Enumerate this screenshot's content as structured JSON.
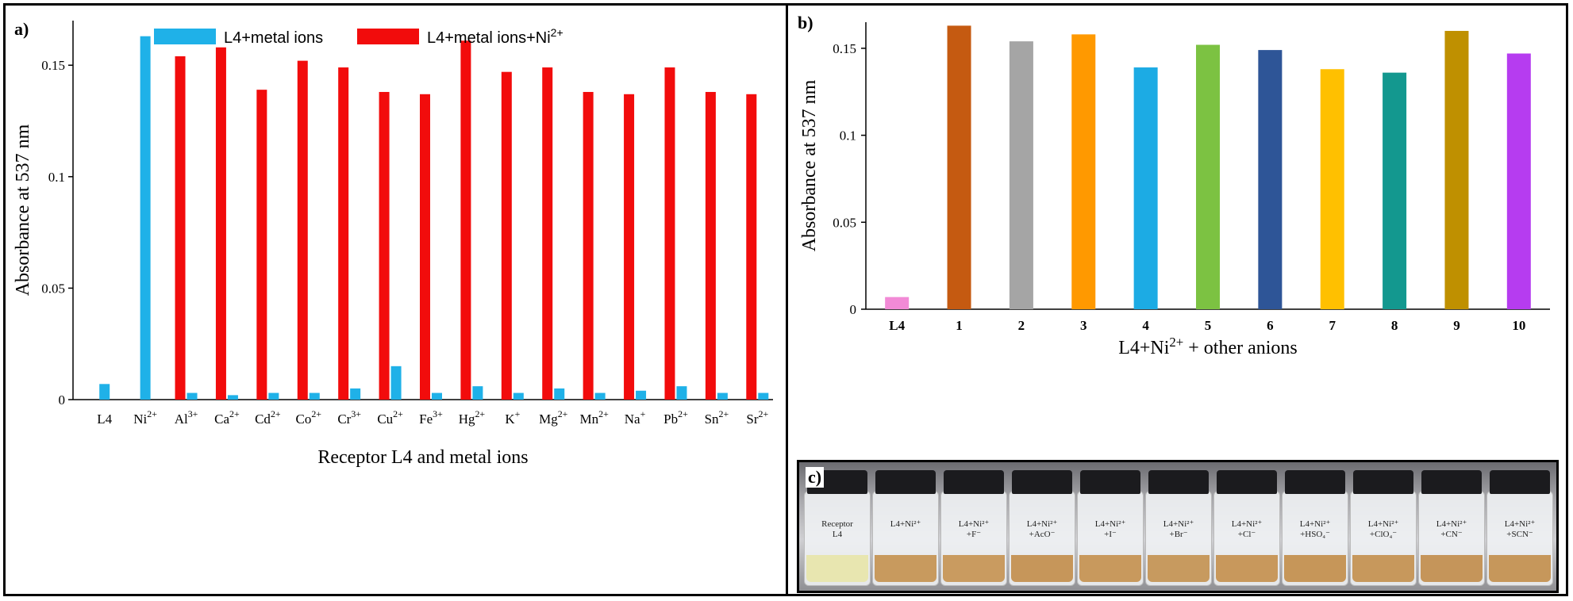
{
  "chart_data": [
    {
      "type": "bar",
      "panel_label": "a)",
      "title": "",
      "xlabel": "Receptor L4 and metal ions",
      "ylabel": "Absorbance at 537 nm",
      "ylim": [
        0,
        0.17
      ],
      "yticks": [
        "0",
        "0.05",
        "0.1",
        "0.15"
      ],
      "ytick_values": [
        0,
        0.05,
        0.1,
        0.15
      ],
      "categories": [
        "L4",
        "Ni2+",
        "Al3+",
        "Ca2+",
        "Cd2+",
        "Co2+",
        "Cr3+",
        "Cu2+",
        "Fe3+",
        "Hg2+",
        "K+",
        "Mg2+",
        "Mn2+",
        "Na+",
        "Pb2+",
        "Sn2+",
        "Sr2+"
      ],
      "category_labels": [
        {
          "base": "L4",
          "sup": ""
        },
        {
          "base": "Ni",
          "sup": "2+"
        },
        {
          "base": "Al",
          "sup": "3+"
        },
        {
          "base": "Ca",
          "sup": "2+"
        },
        {
          "base": "Cd",
          "sup": "2+"
        },
        {
          "base": "Co",
          "sup": "2+"
        },
        {
          "base": "Cr",
          "sup": "3+"
        },
        {
          "base": "Cu",
          "sup": "2+"
        },
        {
          "base": "Fe",
          "sup": "3+"
        },
        {
          "base": "Hg",
          "sup": "2+"
        },
        {
          "base": "K",
          "sup": "+"
        },
        {
          "base": "Mg",
          "sup": "2+"
        },
        {
          "base": "Mn",
          "sup": "2+"
        },
        {
          "base": "Na",
          "sup": "+"
        },
        {
          "base": "Pb",
          "sup": "2+"
        },
        {
          "base": "Sn",
          "sup": "2+"
        },
        {
          "base": "Sr",
          "sup": "2+"
        }
      ],
      "series": [
        {
          "name": "L4+metal ions",
          "legend_base": "L4+metal ions",
          "legend_sup": "",
          "color": "#1fb1e8",
          "values": [
            0.007,
            0.163,
            0.003,
            0.002,
            0.003,
            0.003,
            0.005,
            0.015,
            0.003,
            0.006,
            0.003,
            0.005,
            0.003,
            0.004,
            0.006,
            0.003,
            0.003
          ]
        },
        {
          "name": "L4+metal ions+Ni2+",
          "legend_base": "L4+metal ions+Ni",
          "legend_sup": "2+",
          "color": "#f20c0c",
          "values": [
            null,
            null,
            0.154,
            0.158,
            0.139,
            0.152,
            0.149,
            0.138,
            0.137,
            0.161,
            0.147,
            0.149,
            0.138,
            0.137,
            0.149,
            0.138,
            0.137
          ]
        }
      ]
    },
    {
      "type": "bar",
      "panel_label": "b)",
      "title": "",
      "xlabel_base": "L4+Ni",
      "xlabel_sup": "2+",
      "xlabel_rest": " + other anions",
      "ylabel": "Absorbance at 537 nm",
      "ylim": [
        0,
        0.165
      ],
      "yticks": [
        "0",
        "0.05",
        "0.1",
        "0.15"
      ],
      "ytick_values": [
        0,
        0.05,
        0.1,
        0.15
      ],
      "categories": [
        "L4",
        "1",
        "2",
        "3",
        "4",
        "5",
        "6",
        "7",
        "8",
        "9",
        "10"
      ],
      "values": [
        0.007,
        0.163,
        0.154,
        0.158,
        0.139,
        0.152,
        0.149,
        0.138,
        0.136,
        0.16,
        0.147
      ],
      "colors": [
        "#f28ad6",
        "#c55a11",
        "#a5a5a5",
        "#ff9900",
        "#1cabe4",
        "#7cc242",
        "#2e5597",
        "#ffc000",
        "#13988f",
        "#bf9000",
        "#b63cf0"
      ]
    }
  ],
  "photo": {
    "panel_label": "c)",
    "vials": [
      {
        "lines": [
          "Receptor",
          "L4"
        ],
        "liquid": "#e8e6b0"
      },
      {
        "lines": [
          "L4+Ni²⁺"
        ],
        "liquid": "#c89a5e"
      },
      {
        "lines": [
          "L4+Ni²⁺",
          "+F⁻"
        ],
        "liquid": "#c99b60"
      },
      {
        "lines": [
          "L4+Ni²⁺",
          "+AcO⁻"
        ],
        "liquid": "#c6965a"
      },
      {
        "lines": [
          "L4+Ni²⁺",
          "+I⁻"
        ],
        "liquid": "#c8995d"
      },
      {
        "lines": [
          "L4+Ni²⁺",
          "+Br⁻"
        ],
        "liquid": "#c79a5f"
      },
      {
        "lines": [
          "L4+Ni²⁺",
          "+Cl⁻"
        ],
        "liquid": "#c8985c"
      },
      {
        "lines": [
          "L4+Ni²⁺",
          "+HSO₄⁻"
        ],
        "liquid": "#c69659"
      },
      {
        "lines": [
          "L4+Ni²⁺",
          "+ClO₄⁻"
        ],
        "liquid": "#c7985c"
      },
      {
        "lines": [
          "L4+Ni²⁺",
          "+CN⁻"
        ],
        "liquid": "#c5955a"
      },
      {
        "lines": [
          "L4+Ni²⁺",
          "+SCN⁻"
        ],
        "liquid": "#c6975b"
      }
    ]
  }
}
